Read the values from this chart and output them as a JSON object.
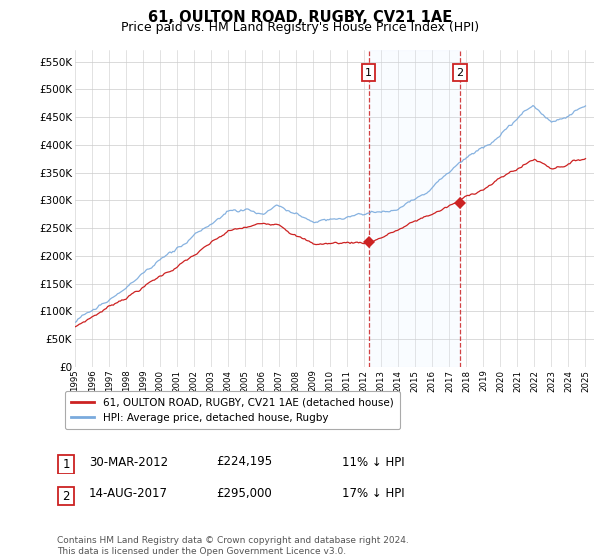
{
  "title": "61, OULTON ROAD, RUGBY, CV21 1AE",
  "subtitle": "Price paid vs. HM Land Registry's House Price Index (HPI)",
  "ylim": [
    0,
    570000
  ],
  "yticks": [
    0,
    50000,
    100000,
    150000,
    200000,
    250000,
    300000,
    350000,
    400000,
    450000,
    500000,
    550000
  ],
  "ytick_labels": [
    "£0",
    "£50K",
    "£100K",
    "£150K",
    "£200K",
    "£250K",
    "£300K",
    "£350K",
    "£400K",
    "£450K",
    "£500K",
    "£550K"
  ],
  "sale1_date": 2012.25,
  "sale1_price": 224195,
  "sale2_date": 2017.62,
  "sale2_price": 295000,
  "hpi_color": "#7aaadd",
  "price_color": "#cc2222",
  "annotation_box_color": "#cc2222",
  "grid_color": "#cccccc",
  "highlight_fill": "#ddeeff",
  "legend_label_price": "61, OULTON ROAD, RUGBY, CV21 1AE (detached house)",
  "legend_label_hpi": "HPI: Average price, detached house, Rugby",
  "table_row1": [
    "1",
    "30-MAR-2012",
    "£224,195",
    "11% ↓ HPI"
  ],
  "table_row2": [
    "2",
    "14-AUG-2017",
    "£295,000",
    "17% ↓ HPI"
  ],
  "footer": "Contains HM Land Registry data © Crown copyright and database right 2024.\nThis data is licensed under the Open Government Licence v3.0.",
  "title_fontsize": 10.5,
  "subtitle_fontsize": 9,
  "axis_fontsize": 7.5
}
